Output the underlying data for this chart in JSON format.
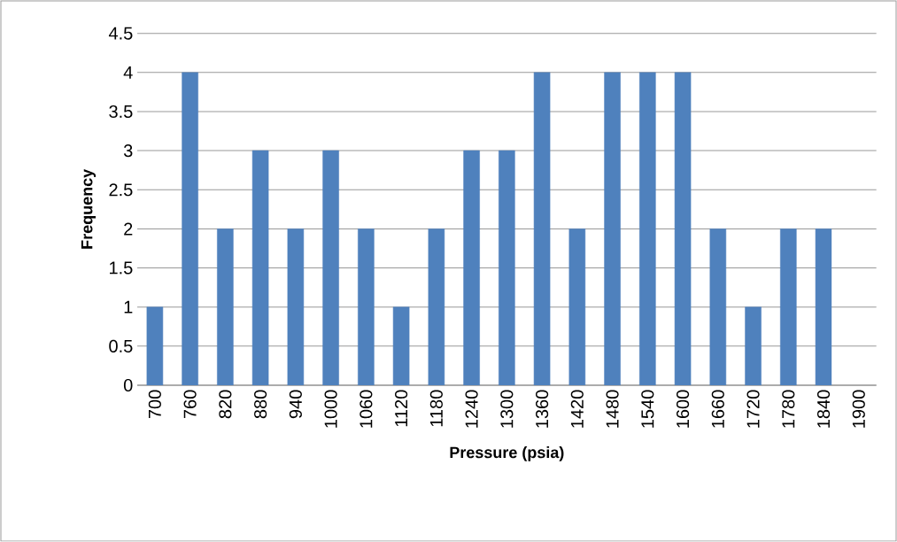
{
  "chart_data": {
    "type": "bar",
    "xlabel": "Pressure (psia)",
    "ylabel": "Frequency",
    "categories": [
      "700",
      "760",
      "820",
      "880",
      "940",
      "1000",
      "1060",
      "1120",
      "1180",
      "1240",
      "1300",
      "1360",
      "1420",
      "1480",
      "1540",
      "1600",
      "1660",
      "1720",
      "1780",
      "1840",
      "1900"
    ],
    "values": [
      1,
      4,
      2,
      3,
      2,
      3,
      2,
      1,
      2,
      3,
      3,
      4,
      2,
      4,
      4,
      4,
      2,
      1,
      2,
      2,
      null
    ],
    "color": "#4f81bd",
    "ylim": [
      0,
      4.5
    ],
    "yticks": [
      0,
      0.5,
      1,
      1.5,
      2,
      2.5,
      3,
      3.5,
      4,
      4.5
    ],
    "grid": "y"
  }
}
